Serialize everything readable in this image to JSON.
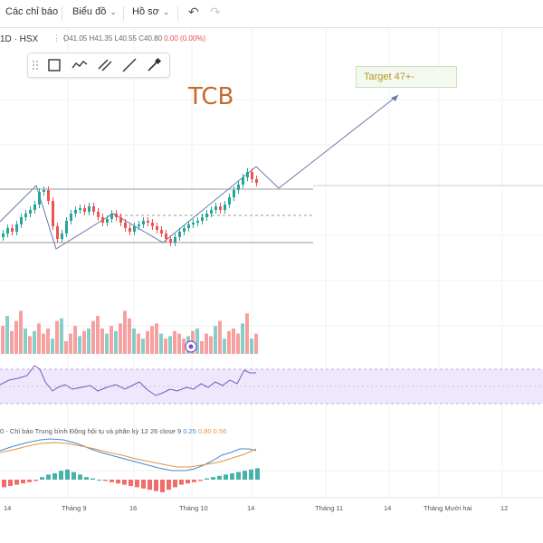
{
  "toolbar": {
    "indicators_label": "Các chỉ báo",
    "chart_label": "Biểu đồ",
    "profile_label": "Hồ sơ",
    "undo_icon": "undo-icon",
    "redo_icon": "redo-icon"
  },
  "symbol": {
    "interval_exchange": "1D · HSX",
    "ohlc_o": "O41.05",
    "ohlc_h": "H41.35",
    "ohlc_l": "L40.55",
    "ohlc_c": "C40.80",
    "ohlc_change": "0.00 (0.00%)"
  },
  "drawing_tools": [
    "rectangle-icon",
    "path-icon",
    "parallel-lines-icon",
    "trend-line-icon",
    "brush-icon"
  ],
  "annotations": {
    "ticker": "TCB",
    "target": "Target 47+-"
  },
  "macd": {
    "label": "0 - Chỉ báo Trung bình Động hội tụ và phân kỳ 12 26 close 9",
    "v1": "0.25",
    "v2": "0.80",
    "v3": "0.56",
    "colors": {
      "macd": "#3c8cd6",
      "signal": "#e8923a",
      "hist_up": "#26a69a",
      "hist_down": "#ef5350"
    }
  },
  "xaxis": [
    "14",
    "Tháng 9",
    "16",
    "Tháng 10",
    "14",
    "Tháng 11",
    "14",
    "Tháng Mười hai",
    "12"
  ],
  "colors": {
    "up": "#26a69a",
    "down": "#ef5350",
    "rsi_band": "#ede8fb"
  }
}
